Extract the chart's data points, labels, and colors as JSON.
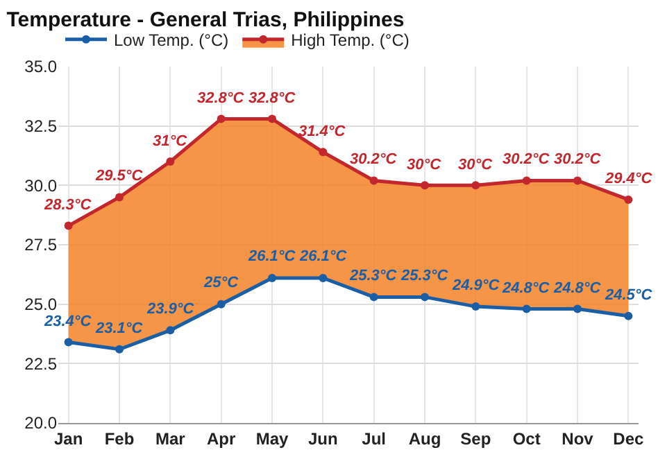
{
  "chart_data": {
    "type": "line",
    "title": "Temperature - General Trias, Philippines",
    "categories": [
      "Jan",
      "Feb",
      "Mar",
      "Apr",
      "May",
      "Jun",
      "Jul",
      "Aug",
      "Sep",
      "Oct",
      "Nov",
      "Dec"
    ],
    "series": [
      {
        "name": "Low Temp. (°C)",
        "color": "#1a5fa6",
        "values": [
          23.4,
          23.1,
          23.9,
          25,
          26.1,
          26.1,
          25.3,
          25.3,
          24.9,
          24.8,
          24.8,
          24.5
        ],
        "value_labels": [
          "23.4°C",
          "23.1°C",
          "23.9°C",
          "25°C",
          "26.1°C",
          "26.1°C",
          "25.3°C",
          "25.3°C",
          "24.9°C",
          "24.8°C",
          "24.8°C",
          "24.5°C"
        ]
      },
      {
        "name": "High Temp. (°C)",
        "type": "area",
        "color": "#c1272d",
        "values": [
          28.3,
          29.5,
          31,
          32.8,
          32.8,
          31.4,
          30.2,
          30,
          30,
          30.2,
          30.2,
          29.4
        ],
        "value_labels": [
          "28.3°C",
          "29.5°C",
          "31°C",
          "32.8°C",
          "32.8°C",
          "31.4°C",
          "30.2°C",
          "30°C",
          "30°C",
          "30.2°C",
          "30.2°C",
          "29.4°C"
        ]
      }
    ],
    "ylim": [
      20,
      35
    ],
    "yticks": [
      {
        "value": 20,
        "label": "20.0"
      },
      {
        "value": 22.5,
        "label": "22.5"
      },
      {
        "value": 25,
        "label": "25.0"
      },
      {
        "value": 27.5,
        "label": "27.5"
      },
      {
        "value": 30,
        "label": "30.0"
      },
      {
        "value": 32.5,
        "label": "32.5"
      },
      {
        "value": 35,
        "label": "35.0"
      }
    ],
    "grid": true,
    "legend": "top left",
    "marker": "circle",
    "line_style": "solid"
  }
}
